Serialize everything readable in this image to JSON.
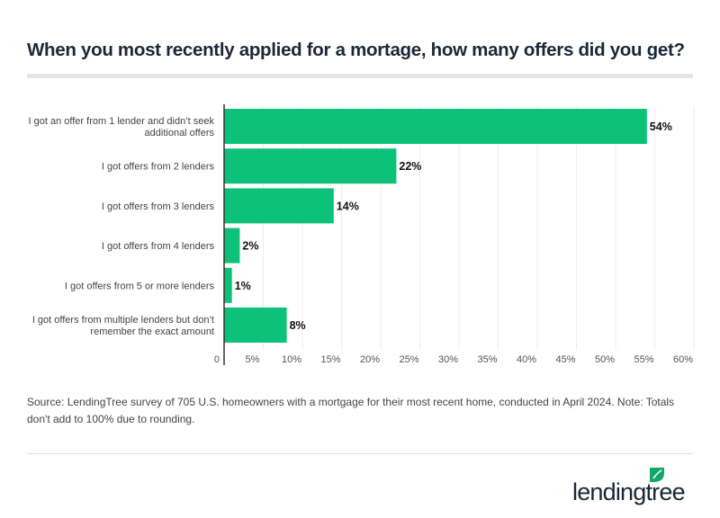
{
  "title": "When you most recently applied for a mortage, how many offers did you get?",
  "source": "Source: LendingTree survey of 705 U.S. homeowners with a mortgage for their most recent home, conducted in April 2024. Note: Totals don't add to 100% due to rounding.",
  "logo": {
    "text": "lendingtree",
    "icon": "leaf-icon"
  },
  "colors": {
    "bar": "#0cc178",
    "title": "#1b2738",
    "logo_green": "#12a76a"
  },
  "chart_data": {
    "type": "bar",
    "orientation": "horizontal",
    "categories": [
      [
        "I got an offer from 1 lender and didn’t seek",
        "additional offers"
      ],
      [
        "I got offers from 2 lenders"
      ],
      [
        "I got offers from 3 lenders"
      ],
      [
        "I got offers from 4 lenders"
      ],
      [
        "I got offers from 5 or more lenders"
      ],
      [
        "I got offers from multiple lenders but don’t",
        "remember the exact amount"
      ]
    ],
    "values": [
      54,
      22,
      14,
      2,
      1,
      8
    ],
    "data_labels": [
      "54%",
      "22%",
      "14%",
      "2%",
      "1%",
      "8%"
    ],
    "xlim": [
      0,
      60
    ],
    "xticks": [
      0,
      5,
      10,
      15,
      20,
      25,
      30,
      35,
      40,
      45,
      50,
      55,
      60
    ],
    "xtick_labels": [
      "0",
      "5%",
      "10%",
      "15%",
      "20%",
      "25%",
      "30%",
      "35%",
      "40%",
      "45%",
      "50%",
      "55%",
      "60%"
    ],
    "grid": "vertical",
    "legend": "none"
  }
}
